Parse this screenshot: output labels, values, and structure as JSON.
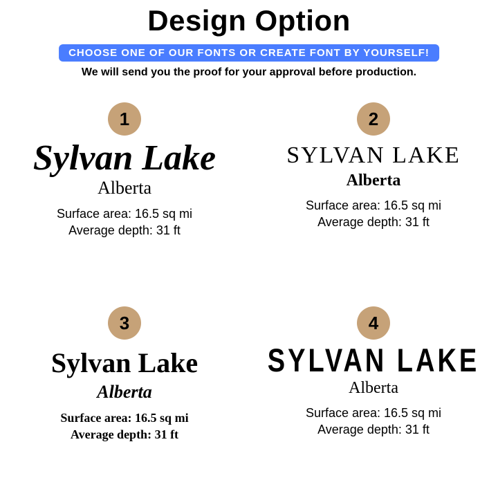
{
  "colors": {
    "bg": "#ffffff",
    "text": "#000000",
    "pill_bg": "#4a7dff",
    "pill_text": "#ffffff",
    "badge_bg": "#c6a278"
  },
  "header": {
    "title": "Design Option",
    "pill": "CHOOSE ONE OF OUR FONTS OR CREATE FONT BY YOURSELF!",
    "subtitle": "We will send you the proof for your approval before production."
  },
  "options": [
    {
      "number": "1",
      "name": "Sylvan Lake",
      "location": "Alberta",
      "surface": "Surface area: 16.5 sq mi",
      "depth": "Average depth: 31 ft",
      "style_class": "opt1"
    },
    {
      "number": "2",
      "name": "SYLVAN LAKE",
      "location": "Alberta",
      "surface": "Surface area: 16.5 sq mi",
      "depth": "Average depth: 31 ft",
      "style_class": "opt2"
    },
    {
      "number": "3",
      "name": "Sylvan Lake",
      "location": "Alberta",
      "surface": "Surface area: 16.5 sq mi",
      "depth": "Average depth: 31 ft",
      "style_class": "opt3"
    },
    {
      "number": "4",
      "name": "SYLVAN LAKE",
      "location": "Alberta",
      "surface": "Surface area: 16.5 sq mi",
      "depth": "Average depth: 31 ft",
      "style_class": "opt4"
    }
  ]
}
